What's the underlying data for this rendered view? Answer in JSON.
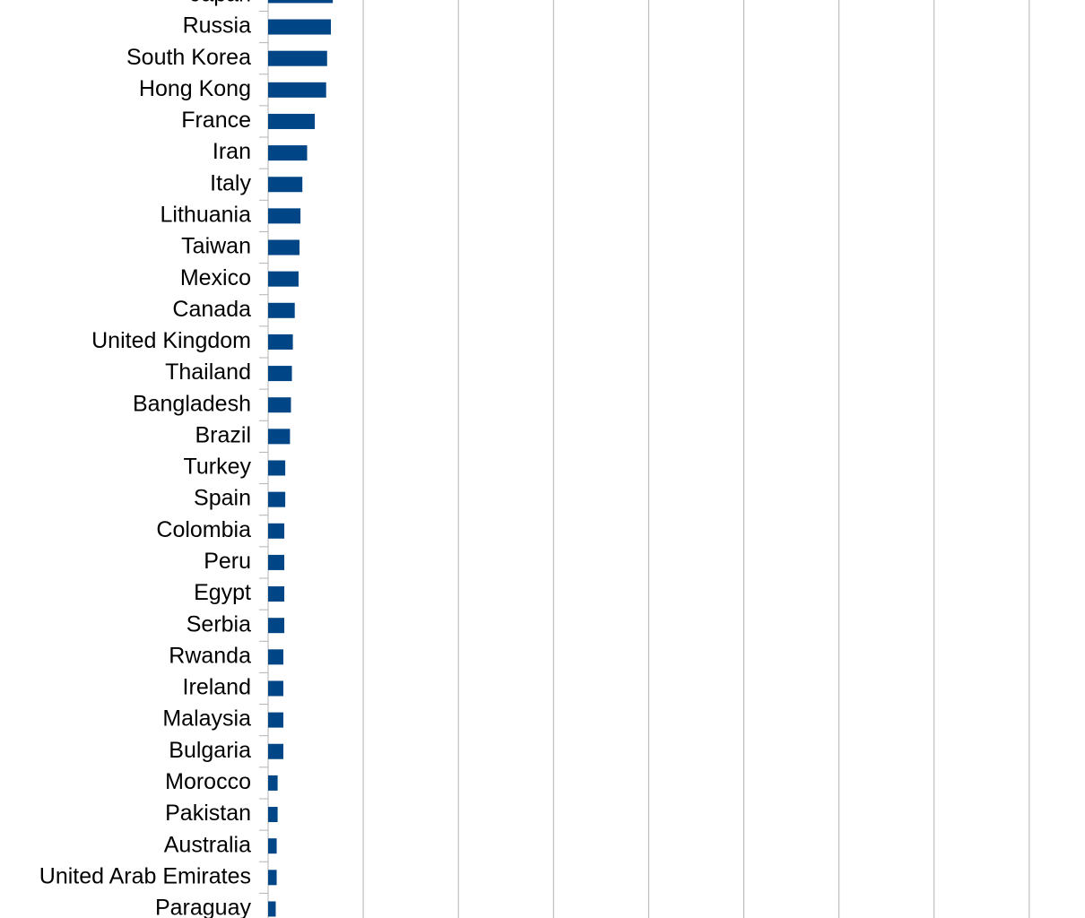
{
  "chart_data": {
    "type": "hbar",
    "categories": [
      "Japan",
      "Russia",
      "South Korea",
      "Hong Kong",
      "France",
      "Iran",
      "Italy",
      "Lithuania",
      "Taiwan",
      "Mexico",
      "Canada",
      "United Kingdom",
      "Thailand",
      "Bangladesh",
      "Brazil",
      "Turkey",
      "Spain",
      "Colombia",
      "Peru",
      "Egypt",
      "Serbia",
      "Rwanda",
      "Ireland",
      "Malaysia",
      "Bulgaria",
      "Morocco",
      "Pakistan",
      "Australia",
      "United Arab Emirates",
      "Paraguay"
    ],
    "values": [
      0.68,
      0.66,
      0.62,
      0.61,
      0.49,
      0.41,
      0.36,
      0.34,
      0.33,
      0.32,
      0.28,
      0.26,
      0.25,
      0.24,
      0.23,
      0.18,
      0.18,
      0.17,
      0.17,
      0.17,
      0.17,
      0.16,
      0.16,
      0.16,
      0.16,
      0.1,
      0.1,
      0.09,
      0.09,
      0.08
    ],
    "color": "#004586",
    "xlim": [
      0,
      8.6
    ],
    "xticks": [
      0,
      1,
      2,
      3,
      4,
      5,
      6,
      7,
      8
    ],
    "grid": true
  }
}
